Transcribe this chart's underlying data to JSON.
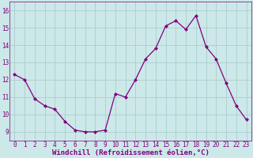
{
  "x": [
    0,
    1,
    2,
    3,
    4,
    5,
    6,
    7,
    8,
    9,
    10,
    11,
    12,
    13,
    14,
    15,
    16,
    17,
    18,
    19,
    20,
    21,
    22,
    23
  ],
  "y": [
    12.3,
    12.0,
    10.9,
    10.5,
    10.3,
    9.6,
    9.1,
    9.0,
    9.0,
    9.1,
    11.2,
    11.0,
    12.0,
    13.2,
    13.8,
    15.1,
    15.4,
    14.9,
    15.7,
    13.9,
    13.2,
    11.8,
    10.5,
    9.7
  ],
  "line_color": "#800080",
  "marker": "D",
  "marker_size": 2.0,
  "bg_color": "#cce8e8",
  "grid_color": "#aacece",
  "xlabel": "Windchill (Refroidissement éolien,°C)",
  "ylabel_ticks": [
    9,
    10,
    11,
    12,
    13,
    14,
    15,
    16
  ],
  "xlim": [
    -0.5,
    23.5
  ],
  "ylim": [
    8.5,
    16.5
  ],
  "xticks": [
    0,
    1,
    2,
    3,
    4,
    5,
    6,
    7,
    8,
    9,
    10,
    11,
    12,
    13,
    14,
    15,
    16,
    17,
    18,
    19,
    20,
    21,
    22,
    23
  ],
  "tick_fontsize": 5.5,
  "xlabel_fontsize": 6.5,
  "linewidth": 0.9
}
